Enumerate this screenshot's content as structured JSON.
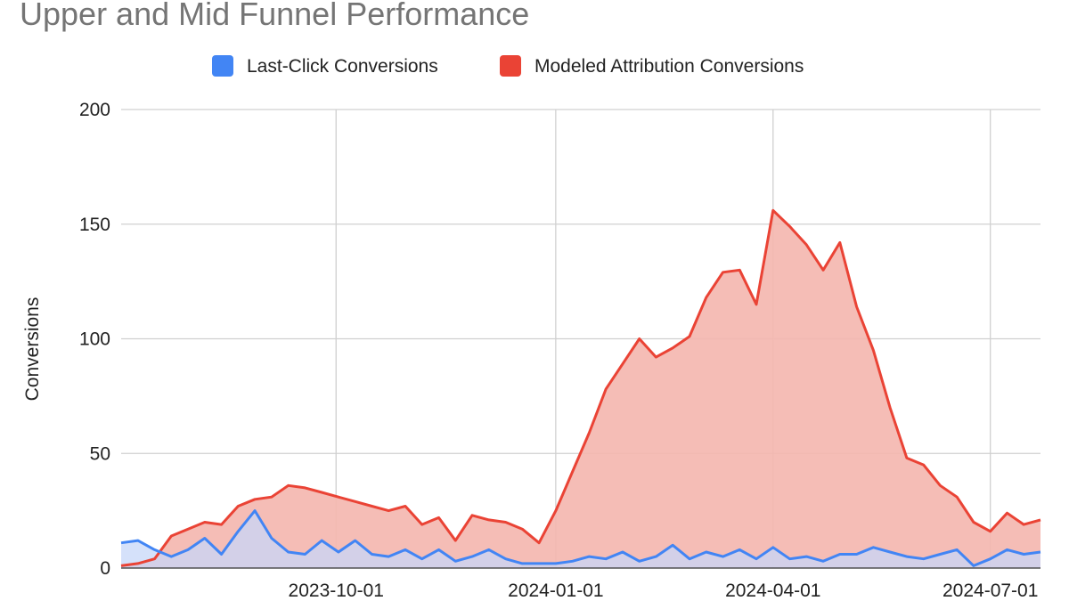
{
  "chart_data": {
    "type": "area",
    "title": "Upper and Mid Funnel Performance",
    "ylabel": "Conversions",
    "xlabel": "",
    "ylim": [
      0,
      200
    ],
    "yticks": [
      0,
      50,
      100,
      150,
      200
    ],
    "xticks": [
      "2023-10-01",
      "2024-01-01",
      "2024-04-01",
      "2024-07-01"
    ],
    "xrange": [
      "2023-07-03",
      "2024-07-22"
    ],
    "grid": true,
    "legend_position": "top",
    "x": [
      "2023-07-03",
      "2023-07-10",
      "2023-07-17",
      "2023-07-24",
      "2023-07-31",
      "2023-08-07",
      "2023-08-14",
      "2023-08-21",
      "2023-08-28",
      "2023-09-04",
      "2023-09-11",
      "2023-09-18",
      "2023-09-25",
      "2023-10-02",
      "2023-10-09",
      "2023-10-16",
      "2023-10-23",
      "2023-10-30",
      "2023-11-06",
      "2023-11-13",
      "2023-11-20",
      "2023-11-27",
      "2023-12-04",
      "2023-12-11",
      "2023-12-18",
      "2023-12-25",
      "2024-01-01",
      "2024-01-08",
      "2024-01-15",
      "2024-01-22",
      "2024-01-29",
      "2024-02-05",
      "2024-02-12",
      "2024-02-19",
      "2024-02-26",
      "2024-03-04",
      "2024-03-11",
      "2024-03-18",
      "2024-03-25",
      "2024-04-01",
      "2024-04-08",
      "2024-04-15",
      "2024-04-22",
      "2024-04-29",
      "2024-05-06",
      "2024-05-13",
      "2024-05-20",
      "2024-05-27",
      "2024-06-03",
      "2024-06-10",
      "2024-06-17",
      "2024-06-24",
      "2024-07-01",
      "2024-07-08",
      "2024-07-15",
      "2024-07-22"
    ],
    "series": [
      {
        "name": "Last-Click Conversions",
        "color": "#4285f4",
        "fill": "#c7d7f8",
        "values": [
          11,
          12,
          8,
          5,
          8,
          13,
          6,
          16,
          25,
          13,
          7,
          6,
          12,
          7,
          12,
          6,
          5,
          8,
          4,
          8,
          3,
          5,
          8,
          4,
          2,
          2,
          2,
          3,
          5,
          4,
          7,
          3,
          5,
          10,
          4,
          7,
          5,
          8,
          4,
          9,
          4,
          5,
          3,
          6,
          6,
          9,
          7,
          5,
          4,
          6,
          8,
          1,
          4,
          8,
          6,
          7
        ]
      },
      {
        "name": "Modeled Attribution Conversions",
        "color": "#ea4335",
        "fill": "#f4b6ae",
        "values": [
          1,
          2,
          4,
          14,
          17,
          20,
          19,
          27,
          30,
          31,
          36,
          35,
          33,
          31,
          29,
          27,
          25,
          27,
          19,
          22,
          12,
          23,
          21,
          20,
          17,
          11,
          25,
          42,
          59,
          78,
          89,
          100,
          92,
          96,
          101,
          118,
          129,
          130,
          115,
          156,
          149,
          141,
          130,
          142,
          114,
          95,
          70,
          48,
          45,
          36,
          31,
          20,
          16,
          24,
          19,
          21
        ]
      }
    ]
  }
}
